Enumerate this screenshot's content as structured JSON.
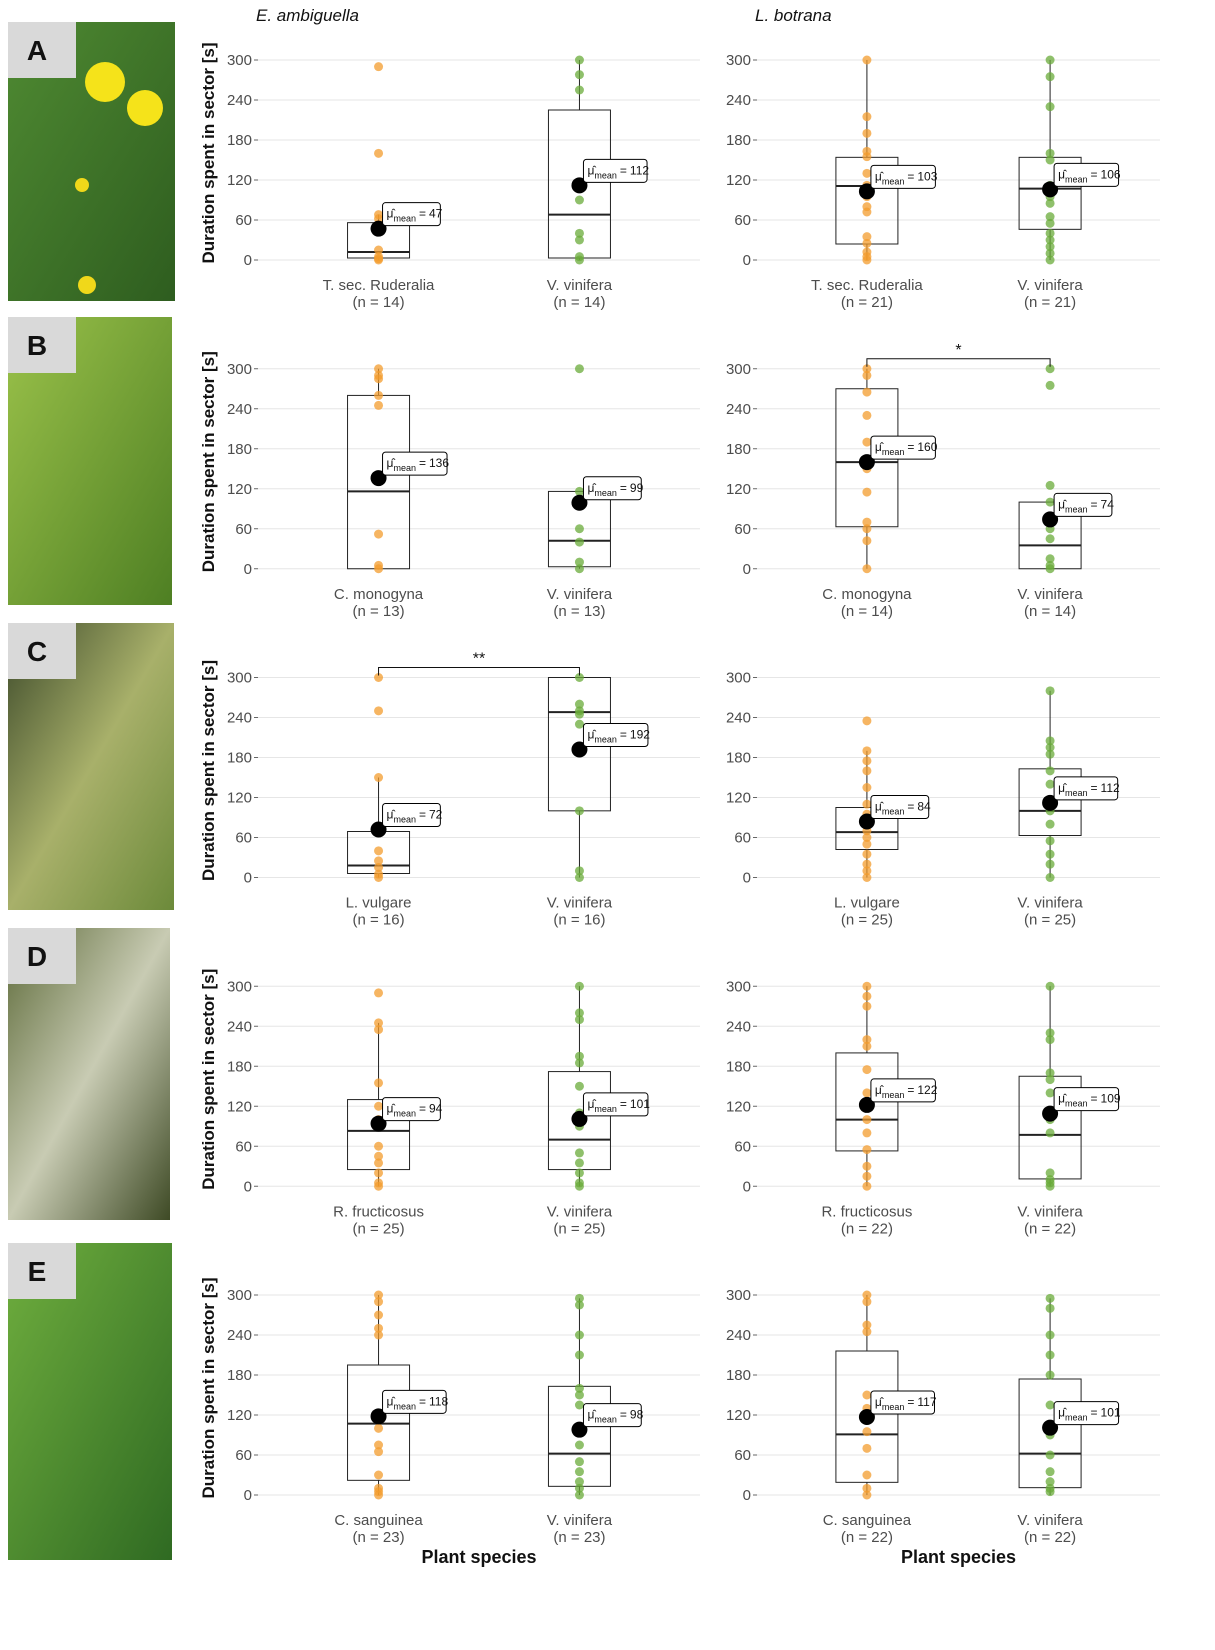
{
  "panels": [
    {
      "label": "A"
    },
    {
      "label": "B"
    },
    {
      "label": "C"
    },
    {
      "label": "D"
    },
    {
      "label": "E"
    }
  ],
  "chart_data": [
    {
      "type": "box",
      "title": "E. ambiguella",
      "ylabel": "Duration spent in sector [s]",
      "categories": [
        "T. sec. Ruderalia",
        "V. vinifera"
      ],
      "n_labels": [
        "(n = 14)",
        "(n = 14)"
      ],
      "ylim": [
        -15,
        336
      ],
      "yticks": [
        0,
        60,
        120,
        180,
        240,
        300
      ],
      "grid": true,
      "mean_label": {
        "symbol": "μ̂",
        "subscript": "mean",
        "sign": "="
      },
      "boxes": [
        {
          "color": "#f39c2e",
          "whisker_low": 0,
          "q1": 3,
          "median": 12,
          "q3": 56,
          "whisker_high": 68,
          "mean": 47,
          "points": [
            290,
            160,
            68,
            62,
            45,
            15,
            5,
            2,
            0
          ]
        },
        {
          "color": "#6aab3a",
          "whisker_low": 0,
          "q1": 3,
          "median": 68,
          "q3": 225,
          "whisker_high": 300,
          "mean": 112,
          "points": [
            300,
            278,
            255,
            90,
            40,
            30,
            5,
            0
          ]
        }
      ]
    },
    {
      "type": "box",
      "title": "L. botrana",
      "categories": [
        "T. sec. Ruderalia",
        "V. vinifera"
      ],
      "n_labels": [
        "(n = 21)",
        "(n = 21)"
      ],
      "ylim": [
        -15,
        336
      ],
      "yticks": [
        0,
        60,
        120,
        180,
        240,
        300
      ],
      "grid": true,
      "mean_label": {
        "symbol": "μ̂",
        "subscript": "mean",
        "sign": "="
      },
      "boxes": [
        {
          "color": "#f39c2e",
          "whisker_low": 0,
          "q1": 24,
          "median": 111,
          "q3": 154,
          "whisker_high": 300,
          "mean": 103,
          "points": [
            300,
            215,
            190,
            163,
            155,
            130,
            112,
            95,
            80,
            72,
            35,
            25,
            12,
            5,
            0
          ]
        },
        {
          "color": "#6aab3a",
          "whisker_low": 0,
          "q1": 46,
          "median": 107,
          "q3": 154,
          "whisker_high": 300,
          "mean": 106,
          "points": [
            300,
            275,
            230,
            160,
            150,
            112,
            95,
            85,
            65,
            55,
            40,
            30,
            20,
            10,
            0
          ]
        }
      ]
    },
    {
      "type": "box",
      "ylabel": "Duration spent in sector [s]",
      "categories": [
        "C. monogyna",
        "V. vinifera"
      ],
      "n_labels": [
        "(n = 13)",
        "(n = 13)"
      ],
      "ylim": [
        -15,
        336
      ],
      "yticks": [
        0,
        60,
        120,
        180,
        240,
        300
      ],
      "grid": true,
      "mean_label": {
        "symbol": "μ̂",
        "subscript": "mean",
        "sign": "="
      },
      "boxes": [
        {
          "color": "#f39c2e",
          "whisker_low": 0,
          "q1": 0,
          "median": 116,
          "q3": 260,
          "whisker_high": 300,
          "mean": 136,
          "points": [
            300,
            290,
            285,
            260,
            245,
            52,
            5,
            0
          ]
        },
        {
          "color": "#6aab3a",
          "whisker_low": 0,
          "q1": 3,
          "median": 42,
          "q3": 116,
          "whisker_high": 116,
          "mean": 99,
          "points": [
            300,
            116,
            100,
            60,
            40,
            10,
            0
          ]
        }
      ]
    },
    {
      "type": "box",
      "categories": [
        "C. monogyna",
        "V. vinifera"
      ],
      "n_labels": [
        "(n = 14)",
        "(n = 14)"
      ],
      "ylim": [
        -15,
        336
      ],
      "yticks": [
        0,
        60,
        120,
        180,
        240,
        300
      ],
      "grid": true,
      "significance": "*",
      "mean_label": {
        "symbol": "μ̂",
        "subscript": "mean",
        "sign": "="
      },
      "boxes": [
        {
          "color": "#f39c2e",
          "whisker_low": 0,
          "q1": 63,
          "median": 160,
          "q3": 270,
          "whisker_high": 300,
          "mean": 160,
          "points": [
            300,
            290,
            265,
            230,
            190,
            150,
            115,
            70,
            60,
            42,
            0
          ]
        },
        {
          "color": "#6aab3a",
          "whisker_low": 0,
          "q1": 0,
          "median": 35,
          "q3": 100,
          "whisker_high": 100,
          "mean": 74,
          "points": [
            300,
            275,
            125,
            100,
            60,
            45,
            15,
            5,
            0
          ]
        }
      ]
    },
    {
      "type": "box",
      "ylabel": "Duration spent in sector [s]",
      "categories": [
        "L. vulgare",
        "V. vinifera"
      ],
      "n_labels": [
        "(n = 16)",
        "(n = 16)"
      ],
      "ylim": [
        -15,
        336
      ],
      "yticks": [
        0,
        60,
        120,
        180,
        240,
        300
      ],
      "grid": true,
      "significance": "**",
      "mean_label": {
        "symbol": "μ̂",
        "subscript": "mean",
        "sign": "="
      },
      "boxes": [
        {
          "color": "#f39c2e",
          "whisker_low": 0,
          "q1": 6,
          "median": 18,
          "q3": 69,
          "whisker_high": 150,
          "mean": 72,
          "points": [
            300,
            250,
            150,
            40,
            25,
            15,
            5,
            0
          ]
        },
        {
          "color": "#6aab3a",
          "whisker_low": 0,
          "q1": 100,
          "median": 248,
          "q3": 300,
          "whisker_high": 300,
          "mean": 192,
          "points": [
            300,
            260,
            250,
            245,
            230,
            100,
            10,
            0
          ]
        }
      ]
    },
    {
      "type": "box",
      "categories": [
        "L. vulgare",
        "V. vinifera"
      ],
      "n_labels": [
        "(n = 25)",
        "(n = 25)"
      ],
      "ylim": [
        -15,
        336
      ],
      "yticks": [
        0,
        60,
        120,
        180,
        240,
        300
      ],
      "grid": true,
      "mean_label": {
        "symbol": "μ̂",
        "subscript": "mean",
        "sign": "="
      },
      "boxes": [
        {
          "color": "#f39c2e",
          "whisker_low": 0,
          "q1": 42,
          "median": 68,
          "q3": 105,
          "whisker_high": 190,
          "mean": 84,
          "points": [
            235,
            190,
            175,
            160,
            135,
            110,
            95,
            70,
            60,
            50,
            35,
            20,
            10,
            0
          ]
        },
        {
          "color": "#6aab3a",
          "whisker_low": 0,
          "q1": 63,
          "median": 100,
          "q3": 163,
          "whisker_high": 280,
          "mean": 112,
          "points": [
            280,
            205,
            195,
            185,
            160,
            140,
            100,
            80,
            55,
            35,
            20,
            0
          ]
        }
      ]
    },
    {
      "type": "box",
      "ylabel": "Duration spent in sector [s]",
      "categories": [
        "R. fructicosus",
        "V. vinifera"
      ],
      "n_labels": [
        "(n = 25)",
        "(n = 25)"
      ],
      "ylim": [
        -15,
        336
      ],
      "yticks": [
        0,
        60,
        120,
        180,
        240,
        300
      ],
      "grid": true,
      "mean_label": {
        "symbol": "μ̂",
        "subscript": "mean",
        "sign": "="
      },
      "boxes": [
        {
          "color": "#f39c2e",
          "whisker_low": 0,
          "q1": 25,
          "median": 83,
          "q3": 130,
          "whisker_high": 245,
          "mean": 94,
          "points": [
            290,
            245,
            235,
            155,
            120,
            100,
            90,
            60,
            45,
            35,
            20,
            5,
            0
          ]
        },
        {
          "color": "#6aab3a",
          "whisker_low": 0,
          "q1": 25,
          "median": 70,
          "q3": 172,
          "whisker_high": 300,
          "mean": 101,
          "points": [
            300,
            260,
            250,
            195,
            185,
            150,
            110,
            90,
            50,
            35,
            20,
            5,
            0
          ]
        }
      ]
    },
    {
      "type": "box",
      "categories": [
        "R. fructicosus",
        "V. vinifera"
      ],
      "n_labels": [
        "(n = 22)",
        "(n = 22)"
      ],
      "ylim": [
        -15,
        336
      ],
      "yticks": [
        0,
        60,
        120,
        180,
        240,
        300
      ],
      "grid": true,
      "mean_label": {
        "symbol": "μ̂",
        "subscript": "mean",
        "sign": "="
      },
      "boxes": [
        {
          "color": "#f39c2e",
          "whisker_low": 0,
          "q1": 53,
          "median": 100,
          "q3": 200,
          "whisker_high": 300,
          "mean": 122,
          "points": [
            300,
            285,
            270,
            220,
            210,
            175,
            140,
            100,
            80,
            55,
            30,
            15,
            0
          ]
        },
        {
          "color": "#6aab3a",
          "whisker_low": 0,
          "q1": 11,
          "median": 77,
          "q3": 165,
          "whisker_high": 300,
          "mean": 109,
          "points": [
            300,
            230,
            220,
            170,
            160,
            140,
            100,
            80,
            20,
            10,
            5,
            0
          ]
        }
      ]
    },
    {
      "type": "box",
      "ylabel": "Duration spent in sector [s]",
      "xlabel": "Plant species",
      "categories": [
        "C. sanguinea",
        "V. vinifera"
      ],
      "n_labels": [
        "(n = 23)",
        "(n = 23)"
      ],
      "ylim": [
        -15,
        336
      ],
      "yticks": [
        0,
        60,
        120,
        180,
        240,
        300
      ],
      "grid": true,
      "mean_label": {
        "symbol": "μ̂",
        "subscript": "mean",
        "sign": "="
      },
      "boxes": [
        {
          "color": "#f39c2e",
          "whisker_low": 0,
          "q1": 22,
          "median": 107,
          "q3": 195,
          "whisker_high": 300,
          "mean": 118,
          "points": [
            300,
            290,
            270,
            250,
            240,
            100,
            75,
            65,
            30,
            10,
            5,
            0
          ]
        },
        {
          "color": "#6aab3a",
          "whisker_low": 0,
          "q1": 13,
          "median": 62,
          "q3": 163,
          "whisker_high": 295,
          "mean": 98,
          "points": [
            295,
            285,
            240,
            210,
            160,
            150,
            135,
            75,
            50,
            35,
            20,
            10,
            0
          ]
        }
      ]
    },
    {
      "type": "box",
      "xlabel": "Plant species",
      "categories": [
        "C. sanguinea",
        "V. vinifera"
      ],
      "n_labels": [
        "(n = 22)",
        "(n = 22)"
      ],
      "ylim": [
        -15,
        336
      ],
      "yticks": [
        0,
        60,
        120,
        180,
        240,
        300
      ],
      "grid": true,
      "mean_label": {
        "symbol": "μ̂",
        "subscript": "mean",
        "sign": "="
      },
      "boxes": [
        {
          "color": "#f39c2e",
          "whisker_low": 0,
          "q1": 19,
          "median": 91,
          "q3": 216,
          "whisker_high": 300,
          "mean": 117,
          "points": [
            300,
            290,
            255,
            245,
            150,
            130,
            95,
            70,
            30,
            10,
            0
          ]
        },
        {
          "color": "#6aab3a",
          "whisker_low": 0,
          "q1": 11,
          "median": 62,
          "q3": 174,
          "whisker_high": 295,
          "mean": 101,
          "points": [
            295,
            280,
            240,
            210,
            180,
            135,
            90,
            60,
            35,
            20,
            10,
            5
          ]
        }
      ]
    }
  ]
}
